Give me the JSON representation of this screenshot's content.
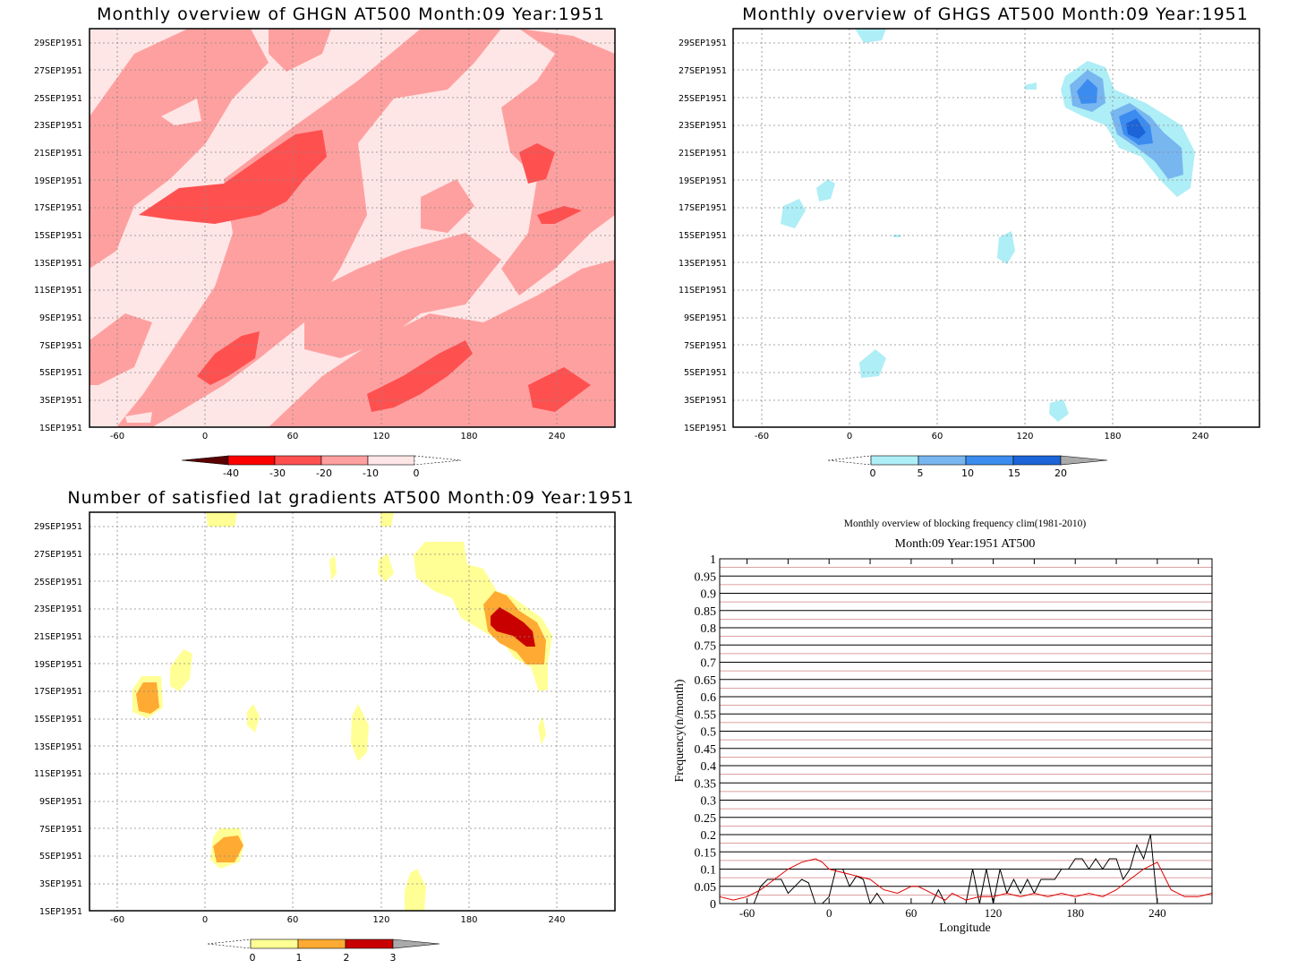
{
  "chart_data": [
    {
      "type": "heatmap",
      "title": "Monthly overview of GHGN AT500 Month:09 Year:1951",
      "y_tick_labels": [
        "1SEP1951",
        "3SEP1951",
        "5SEP1951",
        "7SEP1951",
        "9SEP1951",
        "11SEP1951",
        "13SEP1951",
        "15SEP1951",
        "17SEP1951",
        "19SEP1951",
        "21SEP1951",
        "23SEP1951",
        "25SEP1951",
        "27SEP1951",
        "29SEP1951"
      ],
      "x_tick_labels": [
        "-60",
        "0",
        "60",
        "120",
        "180",
        "240"
      ],
      "x_ticks": [
        -60,
        0,
        60,
        120,
        180,
        240
      ],
      "xlim": [
        -80,
        280
      ],
      "ylim": [
        1,
        30
      ],
      "colorbar": {
        "labels": [
          "-40",
          "-30",
          "-20",
          "-10",
          "0"
        ],
        "levels": [
          -40,
          -30,
          -20,
          -10,
          0
        ],
        "colors": [
          "#5a0000",
          "#ff0000",
          "#ff5050",
          "#ffa0a0",
          "#ffe6e6"
        ]
      },
      "grid": true
    },
    {
      "type": "heatmap",
      "title": "Monthly overview of GHGS AT500 Month:09 Year:1951",
      "y_tick_labels": [
        "1SEP1951",
        "3SEP1951",
        "5SEP1951",
        "7SEP1951",
        "9SEP1951",
        "11SEP1951",
        "13SEP1951",
        "15SEP1951",
        "17SEP1951",
        "19SEP1951",
        "21SEP1951",
        "23SEP1951",
        "25SEP1951",
        "27SEP1951",
        "29SEP1951"
      ],
      "x_tick_labels": [
        "-60",
        "0",
        "60",
        "120",
        "180",
        "240"
      ],
      "x_ticks": [
        -60,
        0,
        60,
        120,
        180,
        240
      ],
      "xlim": [
        -80,
        280
      ],
      "ylim": [
        1,
        30
      ],
      "colorbar": {
        "labels": [
          "0",
          "5",
          "10",
          "15",
          "20"
        ],
        "levels": [
          0,
          5,
          10,
          15,
          20
        ],
        "colors": [
          "#aeeef6",
          "#78b6f0",
          "#3c8cf0",
          "#1c64d8",
          "#aaaaaa"
        ]
      },
      "grid": true
    },
    {
      "type": "heatmap",
      "title": "Number of satisfied lat gradients AT500 Month:09 Year:1951",
      "y_tick_labels": [
        "1SEP1951",
        "3SEP1951",
        "5SEP1951",
        "7SEP1951",
        "9SEP1951",
        "11SEP1951",
        "13SEP1951",
        "15SEP1951",
        "17SEP1951",
        "19SEP1951",
        "21SEP1951",
        "23SEP1951",
        "25SEP1951",
        "27SEP1951",
        "29SEP1951"
      ],
      "x_tick_labels": [
        "-60",
        "0",
        "60",
        "120",
        "180",
        "240"
      ],
      "x_ticks": [
        -60,
        0,
        60,
        120,
        180,
        240
      ],
      "xlim": [
        -80,
        280
      ],
      "ylim": [
        1,
        30
      ],
      "colorbar": {
        "labels": [
          "0",
          "1",
          "2",
          "3"
        ],
        "levels": [
          0,
          1,
          2,
          3
        ],
        "colors": [
          "#ffff96",
          "#ffaa32",
          "#c80000",
          "#aaaaaa"
        ]
      },
      "grid": true
    },
    {
      "type": "line",
      "title": "Monthly overview of blocking frequency clim(1981-2010)",
      "subtitle": "Month:09 Year:1951  AT500",
      "xlabel": "Longitude",
      "ylabel": "Frequency(n/month)",
      "xlim": [
        -80,
        280
      ],
      "ylim": [
        0,
        1
      ],
      "x_ticks": [
        -60,
        0,
        60,
        120,
        180,
        240
      ],
      "x_tick_labels": [
        "-60",
        "0",
        "60",
        "120",
        "180",
        "240"
      ],
      "y_tick_labels": [
        "0",
        "0.05",
        "0.1",
        "0.15",
        "0.2",
        "0.25",
        "0.3",
        "0.35",
        "0.4",
        "0.45",
        "0.5",
        "0.55",
        "0.6",
        "0.65",
        "0.7",
        "0.75",
        "0.8",
        "0.85",
        "0.9",
        "0.95",
        "1"
      ],
      "grid": true,
      "series": [
        {
          "color": "#000000",
          "x": [
            -80,
            -55,
            -50,
            -45,
            -35,
            -30,
            -25,
            -20,
            -15,
            -10,
            -5,
            0,
            5,
            10,
            15,
            20,
            25,
            30,
            35,
            40,
            45,
            50,
            55,
            60,
            65,
            70,
            75,
            80,
            85,
            90,
            95,
            100,
            105,
            110,
            115,
            120,
            125,
            130,
            135,
            140,
            145,
            150,
            155,
            160,
            165,
            170,
            175,
            180,
            185,
            190,
            195,
            200,
            205,
            210,
            215,
            220,
            225,
            230,
            235,
            240
          ],
          "y": [
            0,
            0,
            0.05,
            0.07,
            0.07,
            0.03,
            0.05,
            0.07,
            0.06,
            0,
            0,
            0.02,
            0.1,
            0.1,
            0.05,
            0.08,
            0.07,
            0,
            0.03,
            0,
            0,
            0,
            0,
            0,
            0,
            0,
            0,
            0.04,
            0,
            0,
            0,
            0,
            0.1,
            0,
            0.1,
            0,
            0.1,
            0.03,
            0.07,
            0.03,
            0.07,
            0.03,
            0.07,
            0.07,
            0.07,
            0.1,
            0.1,
            0.13,
            0.13,
            0.1,
            0.13,
            0.1,
            0.13,
            0.13,
            0.07,
            0.1,
            0.17,
            0.13,
            0.2,
            0
          ]
        },
        {
          "color": "#e00000",
          "x": [
            -80,
            -70,
            -60,
            -50,
            -40,
            -30,
            -20,
            -10,
            -5,
            0,
            10,
            20,
            30,
            40,
            50,
            60,
            65,
            70,
            80,
            85,
            90,
            100,
            110,
            120,
            130,
            140,
            150,
            160,
            170,
            180,
            190,
            200,
            210,
            220,
            230,
            240,
            250,
            260,
            270,
            280
          ],
          "y": [
            0.02,
            0.01,
            0.02,
            0.04,
            0.07,
            0.1,
            0.12,
            0.13,
            0.12,
            0.1,
            0.09,
            0.08,
            0.07,
            0.04,
            0.03,
            0.05,
            0.05,
            0.04,
            0.02,
            0.01,
            0.03,
            0.01,
            0.02,
            0.02,
            0.03,
            0.02,
            0.03,
            0.02,
            0.03,
            0.02,
            0.03,
            0.02,
            0.04,
            0.07,
            0.1,
            0.12,
            0.04,
            0.02,
            0.02,
            0.03
          ]
        }
      ]
    }
  ]
}
